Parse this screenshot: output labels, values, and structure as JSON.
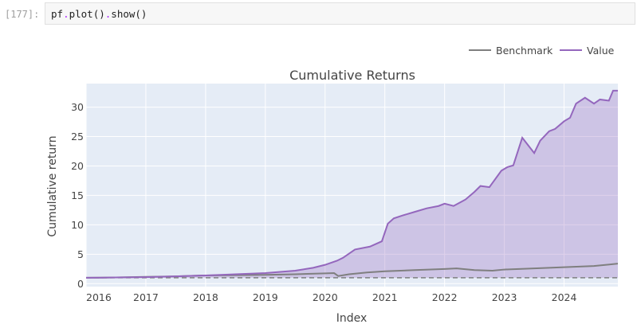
{
  "notebook": {
    "prompt": "[177]:",
    "code": {
      "var": "pf",
      "method1": "plot",
      "method2": "show",
      "dot": ".",
      "call": "()"
    }
  },
  "colors": {
    "plot_bg": "#e5ecf6",
    "grid": "#ffffff",
    "value_line": "#9467bd",
    "value_fill": "rgba(148,103,189,0.3)",
    "benchmark_line": "#7f7f7f",
    "baseline": "#7f7f7f",
    "text": "#444444"
  },
  "chart_data": {
    "type": "line",
    "title": "Cumulative Returns",
    "xlabel": "Index",
    "ylabel": "Cumulative return",
    "x_ticks": [
      "2016",
      "2017",
      "2018",
      "2019",
      "2020",
      "2021",
      "2022",
      "2023",
      "2024"
    ],
    "y_ticks": [
      0,
      5,
      10,
      15,
      20,
      25,
      30
    ],
    "xlim": [
      2016.0,
      2024.9
    ],
    "ylim": [
      -0.5,
      34
    ],
    "grid": true,
    "legend_position": "top-right",
    "baseline": {
      "y": 1,
      "style": "dashed"
    },
    "series": [
      {
        "name": "Benchmark",
        "x": [
          2016.0,
          2016.5,
          2017.0,
          2017.5,
          2018.0,
          2018.5,
          2019.0,
          2019.5,
          2020.0,
          2020.15,
          2020.22,
          2020.4,
          2020.7,
          2021.0,
          2021.5,
          2022.0,
          2022.2,
          2022.5,
          2022.8,
          2023.0,
          2023.5,
          2024.0,
          2024.5,
          2024.9
        ],
        "values": [
          1.0,
          1.05,
          1.15,
          1.25,
          1.4,
          1.45,
          1.5,
          1.6,
          1.75,
          1.8,
          1.3,
          1.6,
          1.9,
          2.1,
          2.3,
          2.5,
          2.6,
          2.3,
          2.2,
          2.4,
          2.6,
          2.8,
          3.0,
          3.4
        ]
      },
      {
        "name": "Value",
        "x": [
          2016.0,
          2016.5,
          2017.0,
          2017.5,
          2018.0,
          2018.5,
          2019.0,
          2019.5,
          2019.8,
          2020.0,
          2020.2,
          2020.3,
          2020.5,
          2020.75,
          2020.95,
          2021.05,
          2021.15,
          2021.3,
          2021.5,
          2021.7,
          2021.9,
          2022.0,
          2022.15,
          2022.35,
          2022.5,
          2022.6,
          2022.75,
          2022.95,
          2023.05,
          2023.15,
          2023.3,
          2023.5,
          2023.6,
          2023.75,
          2023.85,
          2024.0,
          2024.1,
          2024.2,
          2024.35,
          2024.5,
          2024.6,
          2024.75,
          2024.82,
          2024.9
        ],
        "values": [
          1.0,
          1.05,
          1.1,
          1.25,
          1.4,
          1.6,
          1.8,
          2.2,
          2.7,
          3.2,
          3.9,
          4.4,
          5.8,
          6.3,
          7.2,
          10.2,
          11.1,
          11.6,
          12.2,
          12.8,
          13.2,
          13.6,
          13.2,
          14.3,
          15.6,
          16.6,
          16.4,
          19.2,
          19.8,
          20.1,
          24.8,
          22.2,
          24.3,
          25.9,
          26.3,
          27.6,
          28.2,
          30.6,
          31.6,
          30.6,
          31.3,
          31.1,
          32.8,
          32.8
        ]
      }
    ]
  }
}
